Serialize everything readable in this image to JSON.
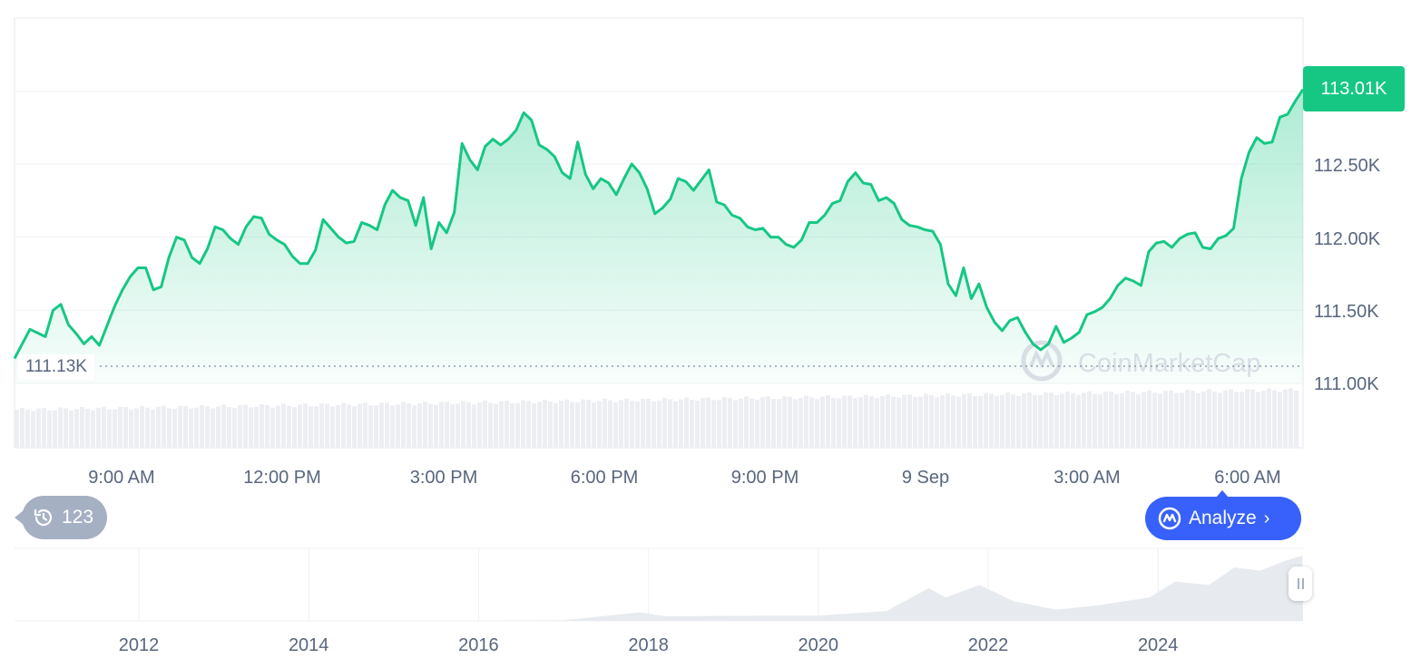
{
  "chart_data": [
    {
      "type": "line",
      "title": "",
      "xlabel": "",
      "ylabel": "",
      "x_ticks": [
        "9:00 AM",
        "12:00 PM",
        "3:00 PM",
        "6:00 PM",
        "9:00 PM",
        "9 Sep",
        "3:00 AM",
        "6:00 AM"
      ],
      "y_ticks": [
        "113.01K",
        "112.50K",
        "112.00K",
        "111.50K",
        "111.00K"
      ],
      "ylim": [
        110.75,
        113.4
      ],
      "grid": true,
      "series": [
        {
          "color": "#16c784",
          "points": [
            [
              0,
              111.17
            ],
            [
              2,
              111.37
            ],
            [
              4,
              111.32
            ],
            [
              5,
              111.5
            ],
            [
              6,
              111.54
            ],
            [
              7,
              111.4
            ],
            [
              8,
              111.34
            ],
            [
              9,
              111.27
            ],
            [
              10,
              111.32
            ],
            [
              11,
              111.26
            ],
            [
              13,
              111.53
            ],
            [
              14,
              111.64
            ],
            [
              15,
              111.73
            ],
            [
              16,
              111.79
            ],
            [
              17,
              111.79
            ],
            [
              18,
              111.64
            ],
            [
              19,
              111.66
            ],
            [
              20,
              111.86
            ],
            [
              21,
              112.0
            ],
            [
              22,
              111.98
            ],
            [
              23,
              111.86
            ],
            [
              24,
              111.82
            ],
            [
              25,
              111.92
            ],
            [
              26,
              112.07
            ],
            [
              27,
              112.05
            ],
            [
              28,
              111.99
            ],
            [
              29,
              111.95
            ],
            [
              30,
              112.07
            ],
            [
              31,
              112.14
            ],
            [
              32,
              112.13
            ],
            [
              33,
              112.02
            ],
            [
              34,
              111.98
            ],
            [
              35,
              111.95
            ],
            [
              36,
              111.87
            ],
            [
              37,
              111.82
            ],
            [
              38,
              111.82
            ],
            [
              39,
              111.91
            ],
            [
              40,
              112.12
            ],
            [
              41,
              112.06
            ],
            [
              42,
              112.0
            ],
            [
              43,
              111.96
            ],
            [
              44,
              111.97
            ],
            [
              45,
              112.1
            ],
            [
              46,
              112.08
            ],
            [
              47,
              112.05
            ],
            [
              48,
              112.22
            ],
            [
              49,
              112.32
            ],
            [
              50,
              112.27
            ],
            [
              51,
              112.25
            ],
            [
              52,
              112.08
            ],
            [
              53,
              112.27
            ],
            [
              54,
              111.92
            ],
            [
              55,
              112.1
            ],
            [
              56,
              112.03
            ],
            [
              57,
              112.17
            ],
            [
              58,
              112.64
            ],
            [
              59,
              112.53
            ],
            [
              60,
              112.46
            ],
            [
              61,
              112.62
            ],
            [
              62,
              112.67
            ],
            [
              63,
              112.63
            ],
            [
              64,
              112.67
            ],
            [
              65,
              112.73
            ],
            [
              66,
              112.85
            ],
            [
              67,
              112.8
            ],
            [
              68,
              112.63
            ],
            [
              69,
              112.6
            ],
            [
              70,
              112.55
            ],
            [
              71,
              112.44
            ],
            [
              72,
              112.4
            ],
            [
              73,
              112.65
            ],
            [
              74,
              112.43
            ],
            [
              75,
              112.33
            ],
            [
              76,
              112.4
            ],
            [
              77,
              112.37
            ],
            [
              78,
              112.29
            ],
            [
              79,
              112.4
            ],
            [
              80,
              112.5
            ],
            [
              81,
              112.44
            ],
            [
              82,
              112.33
            ],
            [
              83,
              112.16
            ],
            [
              84,
              112.2
            ],
            [
              85,
              112.26
            ],
            [
              86,
              112.4
            ],
            [
              87,
              112.38
            ],
            [
              88,
              112.32
            ],
            [
              89,
              112.39
            ],
            [
              90,
              112.46
            ],
            [
              91,
              112.24
            ],
            [
              92,
              112.22
            ],
            [
              93,
              112.15
            ],
            [
              94,
              112.13
            ],
            [
              95,
              112.07
            ],
            [
              96,
              112.05
            ],
            [
              97,
              112.06
            ],
            [
              98,
              112.0
            ],
            [
              99,
              112.0
            ],
            [
              100,
              111.95
            ],
            [
              101,
              111.93
            ],
            [
              102,
              111.98
            ],
            [
              103,
              112.1
            ],
            [
              104,
              112.1
            ],
            [
              105,
              112.15
            ],
            [
              106,
              112.23
            ],
            [
              107,
              112.25
            ],
            [
              108,
              112.38
            ],
            [
              109,
              112.44
            ],
            [
              110,
              112.37
            ],
            [
              111,
              112.36
            ],
            [
              112,
              112.25
            ],
            [
              113,
              112.27
            ],
            [
              114,
              112.23
            ],
            [
              115,
              112.12
            ],
            [
              116,
              112.08
            ],
            [
              117,
              112.07
            ],
            [
              118,
              112.05
            ],
            [
              119,
              112.04
            ],
            [
              120,
              111.95
            ],
            [
              121,
              111.68
            ],
            [
              122,
              111.6
            ],
            [
              123,
              111.79
            ],
            [
              124,
              111.58
            ],
            [
              125,
              111.68
            ],
            [
              126,
              111.52
            ],
            [
              127,
              111.42
            ],
            [
              128,
              111.36
            ],
            [
              129,
              111.43
            ],
            [
              130,
              111.45
            ],
            [
              131,
              111.35
            ],
            [
              132,
              111.27
            ],
            [
              133,
              111.23
            ],
            [
              134,
              111.27
            ],
            [
              135,
              111.39
            ],
            [
              136,
              111.28
            ],
            [
              137,
              111.31
            ],
            [
              138,
              111.35
            ],
            [
              139,
              111.47
            ],
            [
              140,
              111.49
            ],
            [
              141,
              111.52
            ],
            [
              142,
              111.58
            ],
            [
              143,
              111.67
            ],
            [
              144,
              111.72
            ],
            [
              145,
              111.7
            ],
            [
              146,
              111.67
            ],
            [
              147,
              111.9
            ],
            [
              148,
              111.96
            ],
            [
              149,
              111.97
            ],
            [
              150,
              111.93
            ],
            [
              151,
              111.99
            ],
            [
              152,
              112.02
            ],
            [
              153,
              112.03
            ],
            [
              154,
              111.93
            ],
            [
              155,
              111.92
            ],
            [
              156,
              111.99
            ],
            [
              157,
              112.01
            ],
            [
              158,
              112.06
            ],
            [
              159,
              112.4
            ],
            [
              160,
              112.58
            ],
            [
              161,
              112.68
            ],
            [
              162,
              112.64
            ],
            [
              163,
              112.65
            ],
            [
              164,
              112.82
            ],
            [
              165,
              112.84
            ],
            [
              166,
              112.93
            ],
            [
              167,
              113.01
            ]
          ]
        }
      ],
      "reference_line": {
        "value": 111.13,
        "label": "111.13K"
      },
      "current_price_label": "113.01K",
      "volume_bars": "light grey volume histogram along the bottom, slowly rising from left to right"
    },
    {
      "type": "area",
      "title": "",
      "x_ticks": [
        "2012",
        "2014",
        "2016",
        "2018",
        "2020",
        "2022",
        "2024"
      ],
      "grid": true,
      "series": [
        {
          "color": "#e7eaee",
          "points": [
            [
              2010.6,
              0.0
            ],
            [
              2013.0,
              0.002
            ],
            [
              2016.0,
              0.004
            ],
            [
              2017.0,
              0.01
            ],
            [
              2017.9,
              0.13
            ],
            [
              2018.2,
              0.07
            ],
            [
              2019.5,
              0.08
            ],
            [
              2020.0,
              0.08
            ],
            [
              2020.8,
              0.15
            ],
            [
              2021.3,
              0.5
            ],
            [
              2021.5,
              0.36
            ],
            [
              2021.9,
              0.55
            ],
            [
              2022.3,
              0.3
            ],
            [
              2022.8,
              0.17
            ],
            [
              2023.3,
              0.24
            ],
            [
              2023.9,
              0.36
            ],
            [
              2024.2,
              0.6
            ],
            [
              2024.6,
              0.55
            ],
            [
              2024.9,
              0.82
            ],
            [
              2025.2,
              0.77
            ],
            [
              2025.5,
              0.92
            ],
            [
              2025.7,
              1.0
            ]
          ]
        }
      ]
    }
  ],
  "watermark": "CoinMarketCap",
  "history_badge": {
    "count": "123",
    "icon": "history-icon"
  },
  "analyze_button": {
    "label": "Analyze",
    "icon": "cmc-logo-icon",
    "chevron": "chevron-right-icon"
  },
  "colors": {
    "line": "#16c784",
    "button": "#3861fb",
    "badge": "#a6b0c3",
    "grid": "#eff2f5"
  }
}
